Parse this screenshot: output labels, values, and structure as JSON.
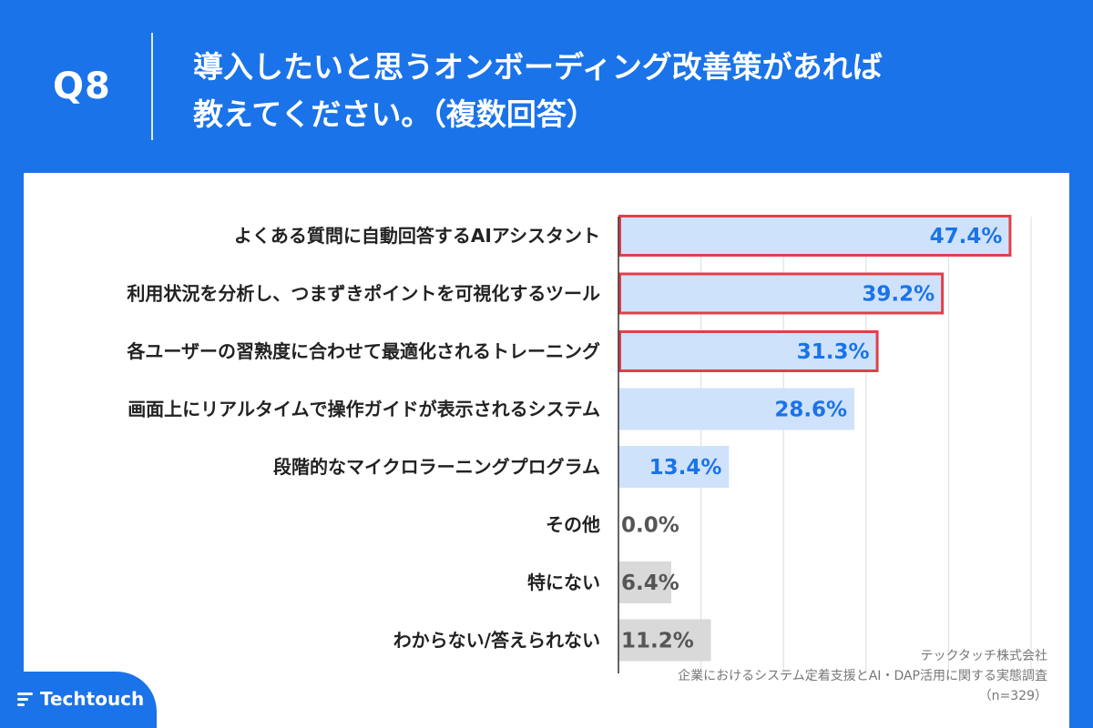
{
  "header": {
    "question_number": "Q8",
    "title_line1": "導入したいと思うオンボーディング改善策があれば",
    "title_line2": "教えてください。（複数回答）"
  },
  "colors": {
    "background": "#1a73e8",
    "bar": "#cfe2fb",
    "bar_other": "#d9d9d9",
    "highlight_border": "#e0404a",
    "value_blue": "#1a73e8",
    "value_gray": "#555555"
  },
  "chart_data": {
    "type": "bar",
    "orientation": "horizontal",
    "categories": [
      "よくある質問に自動回答するAIアシスタント",
      "利用状況を分析し、つまずきポイントを可視化するツール",
      "各ユーザーの習熟度に合わせて最適化されるトレーニング",
      "画面上にリアルタイムで操作ガイドが表示されるシステム",
      "段階的なマイクロラーニングプログラム",
      "その他",
      "特にない",
      "わからない/答えられない"
    ],
    "values": [
      47.4,
      39.2,
      31.3,
      28.6,
      13.4,
      0.0,
      6.4,
      11.2
    ],
    "value_labels": [
      "47.4%",
      "39.2%",
      "31.3%",
      "28.6%",
      "13.4%",
      "0.0%",
      "6.4%",
      "11.2%"
    ],
    "highlighted": [
      true,
      true,
      true,
      false,
      false,
      false,
      false,
      false
    ],
    "bar_kind": [
      "answer",
      "answer",
      "answer",
      "answer",
      "answer",
      "other",
      "other",
      "other"
    ],
    "xlim": [
      0,
      50
    ],
    "gridlines": [
      10,
      20,
      30,
      40,
      50
    ],
    "grid": true
  },
  "source": {
    "company": "テックタッチ株式会社",
    "survey": "企業におけるシステム定着支援とAI・DAP活用に関する実態調査",
    "sample": "（n=329）"
  },
  "logo": {
    "text": "Techtouch"
  }
}
